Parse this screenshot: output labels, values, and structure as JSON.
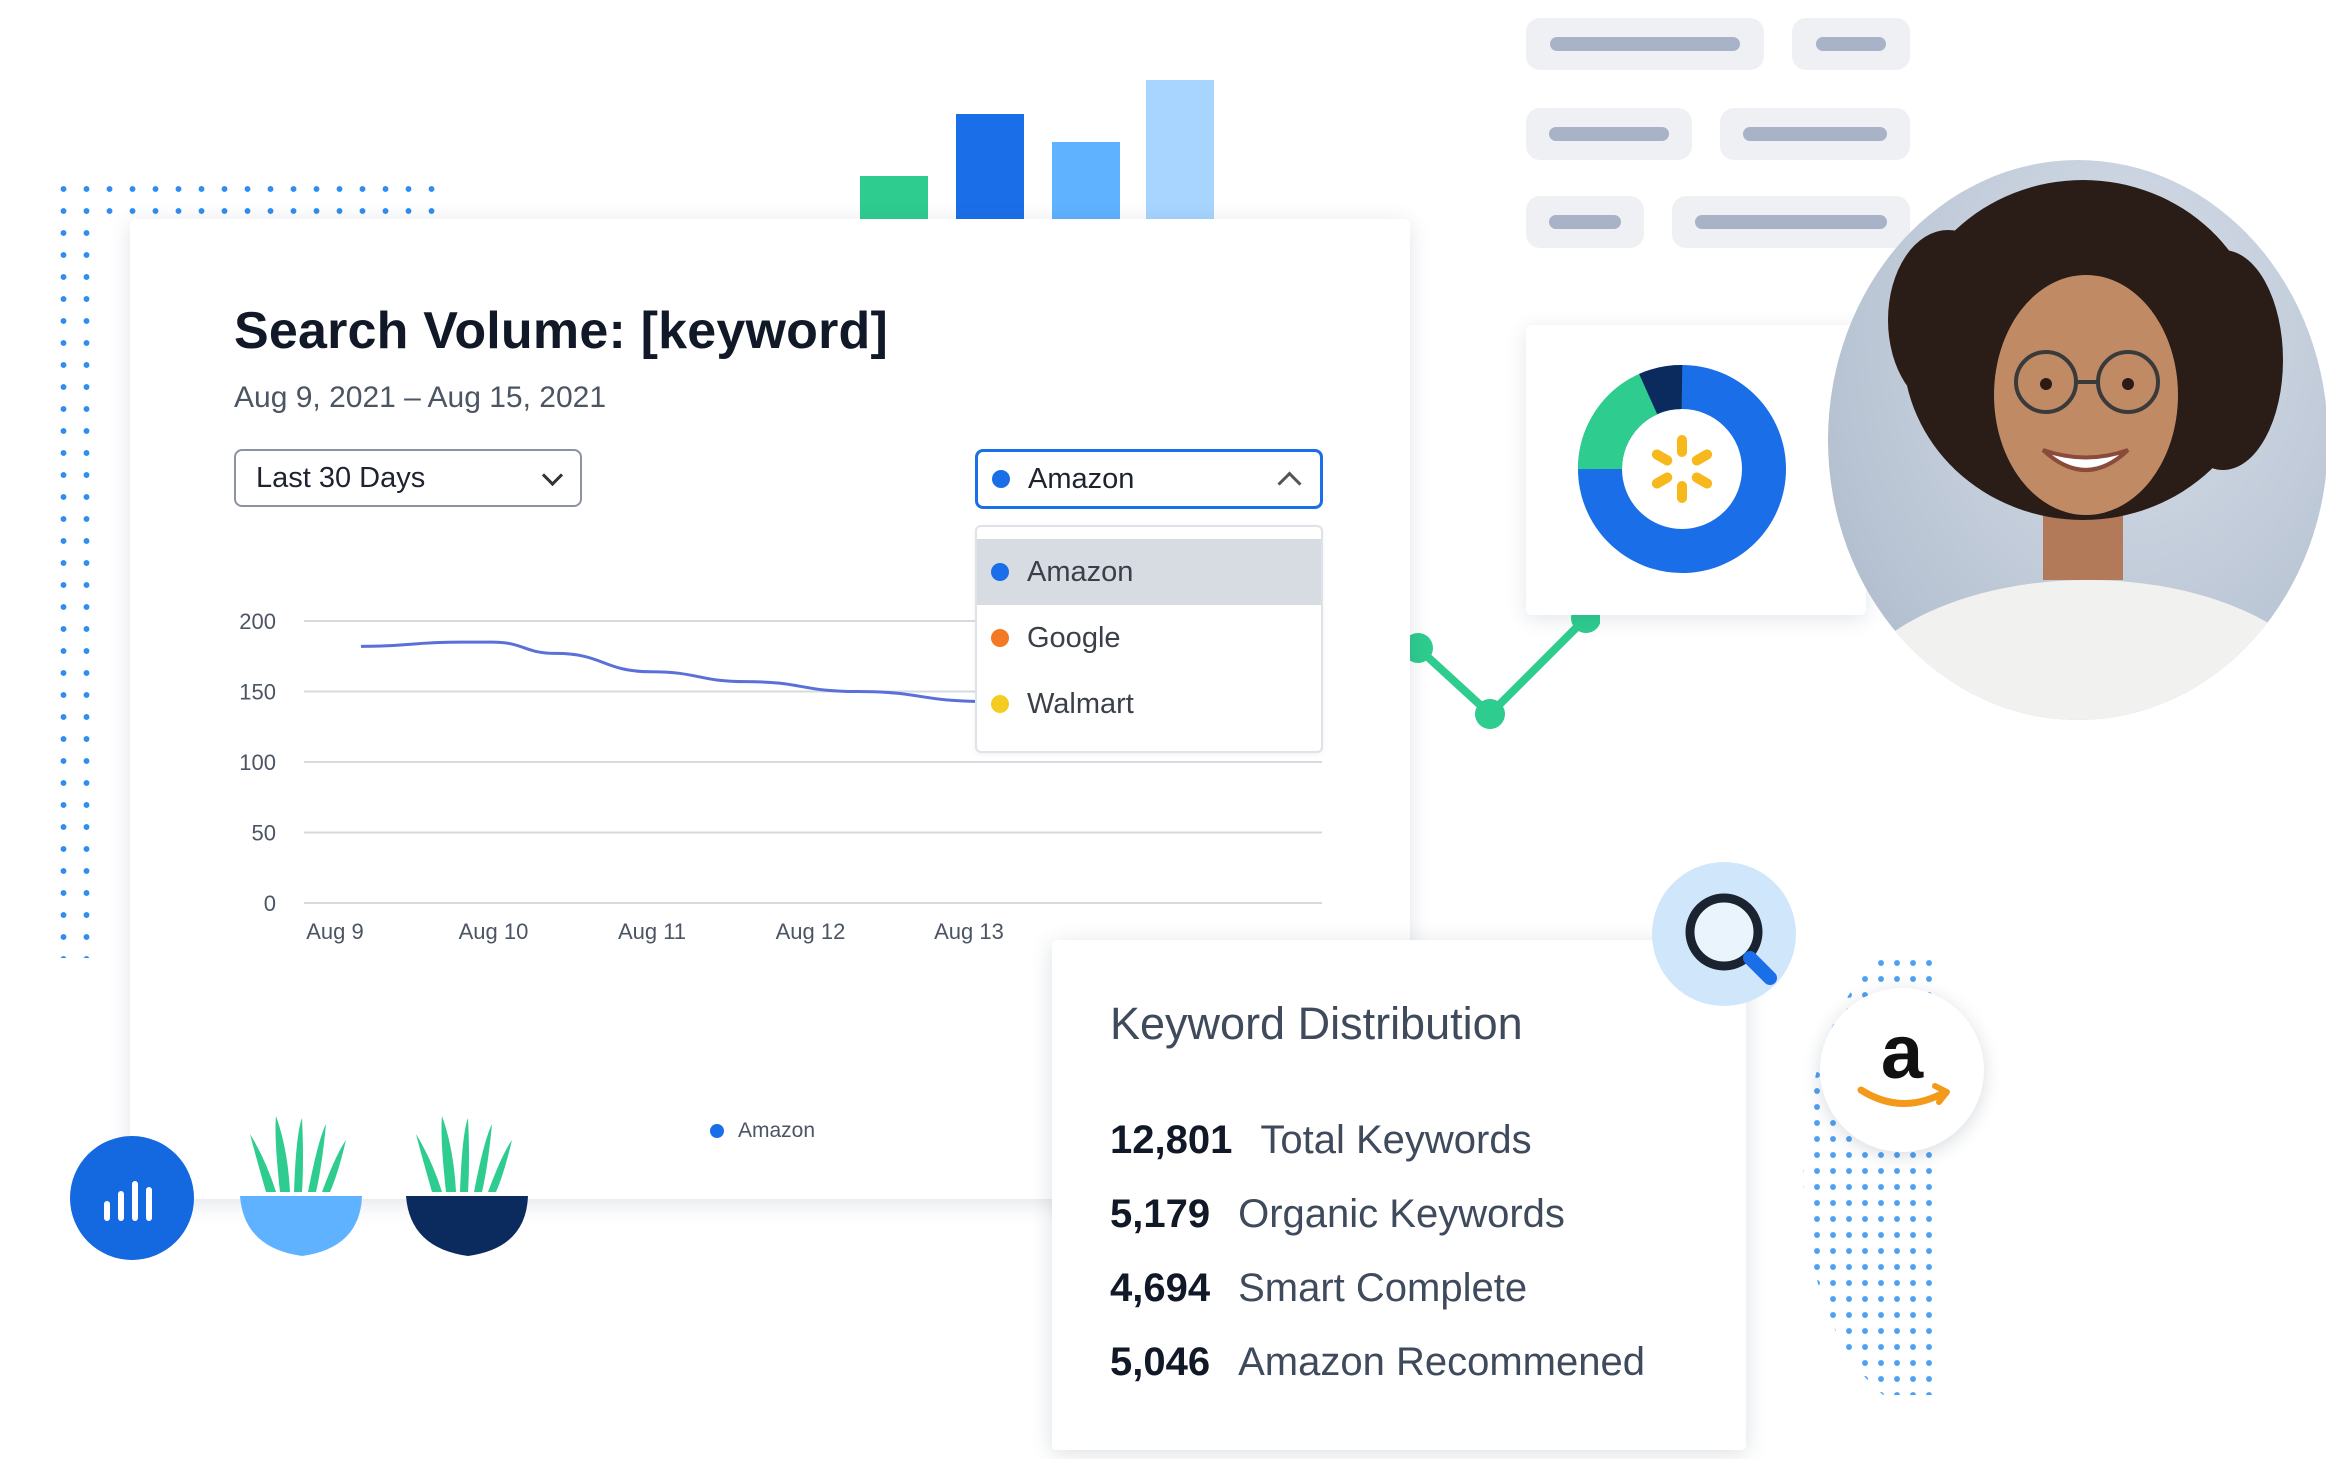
{
  "search_volume_card": {
    "title": "Search Volume: [keyword]",
    "date_range": "Aug 9, 2021 – Aug 15, 2021",
    "range_select": {
      "value": "Last 30 Days"
    },
    "source_select": {
      "value": "Amazon",
      "options": [
        {
          "label": "Amazon",
          "color": "#1a6fe8"
        },
        {
          "label": "Google",
          "color": "#f37a23"
        },
        {
          "label": "Walmart",
          "color": "#f5cc21"
        }
      ]
    },
    "legend_label": "Amazon"
  },
  "keyword_distribution": {
    "title": "Keyword Distribution",
    "rows": [
      {
        "count": "12,801",
        "label": "Total Keywords"
      },
      {
        "count": "5,179",
        "label": "Organic Keywords"
      },
      {
        "count": "4,694",
        "label": "Smart Complete"
      },
      {
        "count": "5,046",
        "label": "Amazon Recommened"
      }
    ]
  },
  "icons": {
    "search": "magnifier-icon",
    "amazon": "amazon-logo",
    "walmart": "walmart-spark-icon",
    "chart": "bar-chart-icon"
  },
  "colors": {
    "primary_blue": "#1a6fe8",
    "green": "#2ecc8f",
    "light_blue": "#5fb2ff",
    "pale_blue": "#a7d5ff",
    "navy": "#0b2a5e"
  },
  "chart_data": {
    "type": "line",
    "categories": [
      "Aug 9",
      "Aug 10",
      "Aug 11",
      "Aug 12",
      "Aug 13"
    ],
    "ylim": [
      0,
      200
    ],
    "yticks": [
      0,
      50,
      100,
      150,
      200
    ],
    "series": [
      {
        "name": "Amazon",
        "color": "#5b6fd8",
        "points": [
          {
            "x": 0.17,
            "y": 182
          },
          {
            "x": 0.8,
            "y": 185
          },
          {
            "x": 1.0,
            "y": 185
          },
          {
            "x": 1.4,
            "y": 177
          },
          {
            "x": 2.0,
            "y": 164
          },
          {
            "x": 2.6,
            "y": 157
          },
          {
            "x": 3.3,
            "y": 150
          },
          {
            "x": 4.1,
            "y": 143
          }
        ]
      }
    ],
    "grid": true,
    "legend": "bottom"
  }
}
